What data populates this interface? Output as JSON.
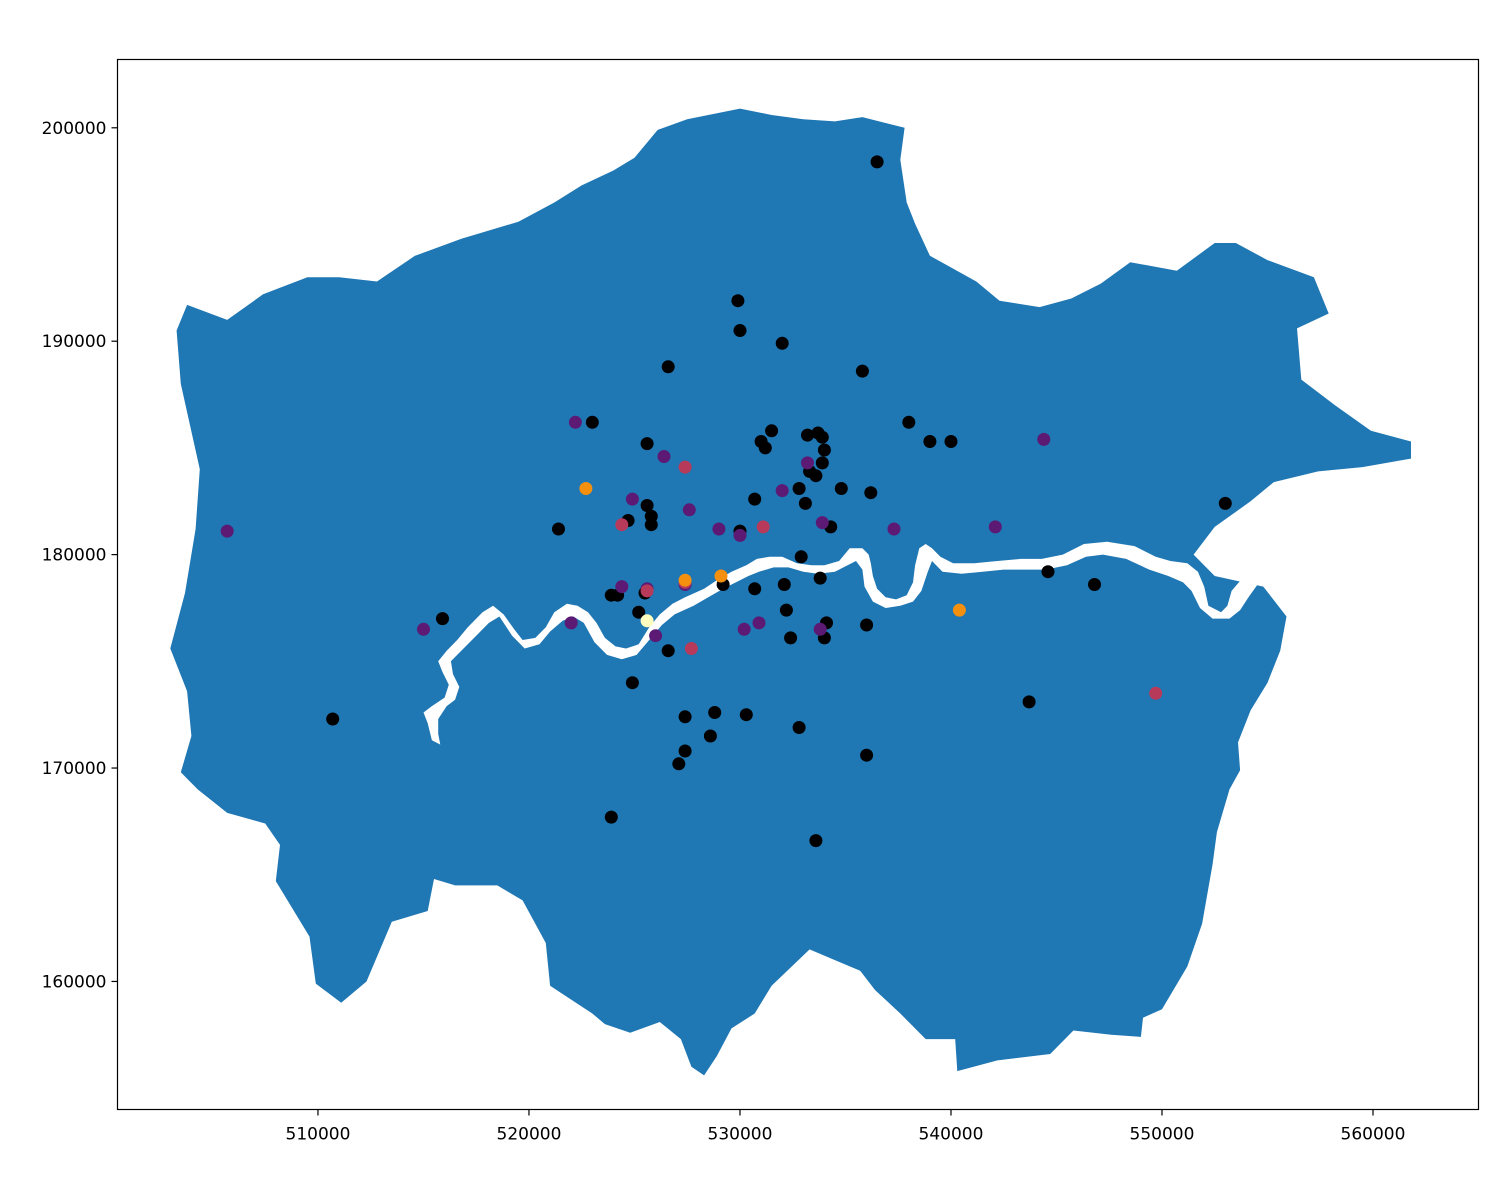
{
  "chart_data": {
    "type": "scatter",
    "title": "",
    "xlabel": "",
    "ylabel": "",
    "xlim": [
      500500,
      565000
    ],
    "ylim": [
      154000,
      203200
    ],
    "grid": false,
    "legend": "none",
    "x_ticks": [
      510000,
      520000,
      530000,
      540000,
      550000,
      560000
    ],
    "y_ticks": [
      160000,
      170000,
      180000,
      190000,
      200000
    ],
    "x_tick_labels": [
      "510000",
      "520000",
      "530000",
      "540000",
      "550000",
      "560000"
    ],
    "y_tick_labels": [
      "160000",
      "170000",
      "180000",
      "190000",
      "200000"
    ],
    "colors": {
      "region_fill": "#1f77b4",
      "river": "#ffffff",
      "level_0": "#000000",
      "level_1": "#5c1a74",
      "level_2": "#b73a5a",
      "level_3": "#f5900f",
      "level_4": "#fcfdbf"
    },
    "region_outline": [
      [
        503000,
        175600
      ],
      [
        503700,
        178200
      ],
      [
        504200,
        181200
      ],
      [
        504400,
        184000
      ],
      [
        503500,
        188000
      ],
      [
        503300,
        190500
      ],
      [
        503800,
        191700
      ],
      [
        505700,
        191000
      ],
      [
        507400,
        192200
      ],
      [
        509500,
        193000
      ],
      [
        511000,
        193000
      ],
      [
        512800,
        192800
      ],
      [
        514600,
        194000
      ],
      [
        516800,
        194800
      ],
      [
        519500,
        195600
      ],
      [
        521200,
        196500
      ],
      [
        522500,
        197300
      ],
      [
        524000,
        198000
      ],
      [
        525000,
        198600
      ],
      [
        526100,
        199900
      ],
      [
        527500,
        200400
      ],
      [
        528500,
        200600
      ],
      [
        530000,
        200900
      ],
      [
        531500,
        200600
      ],
      [
        533000,
        200400
      ],
      [
        534500,
        200300
      ],
      [
        535800,
        200500
      ],
      [
        537800,
        200000
      ],
      [
        537600,
        198500
      ],
      [
        537900,
        196500
      ],
      [
        538300,
        195500
      ],
      [
        539000,
        194000
      ],
      [
        541200,
        192800
      ],
      [
        542300,
        191900
      ],
      [
        544200,
        191600
      ],
      [
        545700,
        192000
      ],
      [
        547100,
        192700
      ],
      [
        548500,
        193700
      ],
      [
        550700,
        193300
      ],
      [
        552500,
        194600
      ],
      [
        553500,
        194600
      ],
      [
        555000,
        193800
      ],
      [
        557200,
        193000
      ],
      [
        557900,
        191300
      ],
      [
        556400,
        190600
      ],
      [
        556600,
        188200
      ],
      [
        558200,
        187000
      ],
      [
        559900,
        185800
      ],
      [
        561800,
        185300
      ],
      [
        561800,
        184500
      ],
      [
        559500,
        184100
      ],
      [
        557400,
        183900
      ],
      [
        555300,
        183400
      ],
      [
        554200,
        182500
      ],
      [
        552500,
        181300
      ],
      [
        551500,
        180000
      ],
      [
        552500,
        179000
      ],
      [
        554800,
        178500
      ],
      [
        555900,
        177100
      ],
      [
        555600,
        175500
      ],
      [
        555000,
        174000
      ],
      [
        554200,
        172700
      ],
      [
        553600,
        171200
      ],
      [
        553700,
        169900
      ],
      [
        553200,
        169000
      ],
      [
        552600,
        167000
      ],
      [
        552400,
        165500
      ],
      [
        551900,
        162700
      ],
      [
        551200,
        160700
      ],
      [
        550000,
        158700
      ],
      [
        549100,
        158300
      ],
      [
        549000,
        157400
      ],
      [
        547600,
        157500
      ],
      [
        545800,
        157700
      ],
      [
        544700,
        156600
      ],
      [
        542200,
        156300
      ],
      [
        540300,
        155800
      ],
      [
        540200,
        157300
      ],
      [
        538800,
        157300
      ],
      [
        537600,
        158500
      ],
      [
        536400,
        159600
      ],
      [
        535700,
        160500
      ],
      [
        534500,
        161000
      ],
      [
        533300,
        161500
      ],
      [
        531500,
        159800
      ],
      [
        530700,
        158500
      ],
      [
        529600,
        157800
      ],
      [
        528900,
        156500
      ],
      [
        528300,
        155600
      ],
      [
        527700,
        156000
      ],
      [
        527200,
        157300
      ],
      [
        526200,
        158100
      ],
      [
        524800,
        157600
      ],
      [
        523600,
        158000
      ],
      [
        523000,
        158500
      ],
      [
        521000,
        159800
      ],
      [
        520800,
        161800
      ],
      [
        519700,
        163800
      ],
      [
        518500,
        164500
      ],
      [
        516500,
        164500
      ],
      [
        515500,
        164800
      ],
      [
        515200,
        163300
      ],
      [
        513500,
        162800
      ],
      [
        512300,
        160000
      ],
      [
        511100,
        159000
      ],
      [
        509900,
        159900
      ],
      [
        509600,
        162100
      ],
      [
        508000,
        164700
      ],
      [
        508200,
        166400
      ],
      [
        507500,
        167400
      ],
      [
        505700,
        167900
      ],
      [
        504300,
        169000
      ],
      [
        503500,
        169800
      ],
      [
        504000,
        171500
      ],
      [
        503800,
        173600
      ],
      [
        503000,
        175600
      ]
    ],
    "river_outline": [
      [
        562000,
        182000
      ],
      [
        560000,
        181700
      ],
      [
        558000,
        181300
      ],
      [
        556600,
        180700
      ],
      [
        555100,
        179800
      ],
      [
        553900,
        179000
      ],
      [
        553300,
        178300
      ],
      [
        553100,
        177600
      ],
      [
        552800,
        177300
      ],
      [
        552200,
        177600
      ],
      [
        552000,
        178500
      ],
      [
        551700,
        179200
      ],
      [
        551200,
        179600
      ],
      [
        550400,
        179700
      ],
      [
        549700,
        179900
      ],
      [
        548700,
        180400
      ],
      [
        547400,
        180600
      ],
      [
        546300,
        180500
      ],
      [
        545300,
        180000
      ],
      [
        544300,
        179800
      ],
      [
        543300,
        179800
      ],
      [
        542200,
        179700
      ],
      [
        541100,
        179600
      ],
      [
        540100,
        179600
      ],
      [
        539500,
        179900
      ],
      [
        539100,
        180300
      ],
      [
        538800,
        180500
      ],
      [
        538500,
        180300
      ],
      [
        538300,
        179500
      ],
      [
        538200,
        178700
      ],
      [
        537900,
        178100
      ],
      [
        537400,
        177900
      ],
      [
        536900,
        178000
      ],
      [
        536500,
        178400
      ],
      [
        536300,
        179000
      ],
      [
        536200,
        179600
      ],
      [
        536100,
        180000
      ],
      [
        535800,
        180300
      ],
      [
        535200,
        180300
      ],
      [
        534700,
        179700
      ],
      [
        534000,
        179500
      ],
      [
        533400,
        179500
      ],
      [
        532700,
        179600
      ],
      [
        532000,
        179900
      ],
      [
        531400,
        179900
      ],
      [
        530800,
        179800
      ],
      [
        530300,
        179500
      ],
      [
        529600,
        179200
      ],
      [
        528900,
        178800
      ],
      [
        528300,
        178400
      ],
      [
        527400,
        178000
      ],
      [
        526800,
        177700
      ],
      [
        526200,
        177200
      ],
      [
        525700,
        176600
      ],
      [
        525200,
        175800
      ],
      [
        524600,
        175600
      ],
      [
        524100,
        175700
      ],
      [
        523600,
        176100
      ],
      [
        523200,
        176800
      ],
      [
        522800,
        177300
      ],
      [
        522300,
        177600
      ],
      [
        521800,
        177700
      ],
      [
        521200,
        177300
      ],
      [
        520800,
        176600
      ],
      [
        520300,
        176100
      ],
      [
        519700,
        176000
      ],
      [
        519300,
        176500
      ],
      [
        518800,
        177200
      ],
      [
        518300,
        177600
      ],
      [
        517800,
        177300
      ],
      [
        517100,
        176600
      ],
      [
        516600,
        176000
      ],
      [
        516100,
        175500
      ],
      [
        515700,
        175000
      ],
      [
        515900,
        174500
      ],
      [
        516200,
        173900
      ],
      [
        516000,
        173300
      ],
      [
        515400,
        172900
      ],
      [
        515000,
        172600
      ],
      [
        515200,
        172100
      ],
      [
        515400,
        171300
      ],
      [
        515800,
        171100
      ],
      [
        515700,
        171600
      ],
      [
        515700,
        172300
      ],
      [
        516100,
        172900
      ],
      [
        516500,
        173200
      ],
      [
        516700,
        173800
      ],
      [
        516400,
        174400
      ],
      [
        516300,
        175000
      ],
      [
        516700,
        175400
      ],
      [
        517400,
        176100
      ],
      [
        518100,
        176800
      ],
      [
        518600,
        177100
      ],
      [
        519200,
        176200
      ],
      [
        519800,
        175600
      ],
      [
        520500,
        175800
      ],
      [
        521000,
        176400
      ],
      [
        521600,
        176900
      ],
      [
        522100,
        177100
      ],
      [
        522600,
        176800
      ],
      [
        523100,
        175900
      ],
      [
        523700,
        175300
      ],
      [
        524400,
        175100
      ],
      [
        525100,
        175300
      ],
      [
        525700,
        176000
      ],
      [
        526300,
        176700
      ],
      [
        526900,
        177200
      ],
      [
        527800,
        177600
      ],
      [
        528500,
        178000
      ],
      [
        529200,
        178400
      ],
      [
        529800,
        178700
      ],
      [
        530400,
        179000
      ],
      [
        530900,
        179200
      ],
      [
        531600,
        179400
      ],
      [
        532300,
        179400
      ],
      [
        533000,
        179200
      ],
      [
        533700,
        179100
      ],
      [
        534500,
        179200
      ],
      [
        535100,
        179500
      ],
      [
        535500,
        179700
      ],
      [
        535800,
        179300
      ],
      [
        535900,
        178500
      ],
      [
        536300,
        177800
      ],
      [
        536900,
        177500
      ],
      [
        537600,
        177600
      ],
      [
        538200,
        177800
      ],
      [
        538600,
        178300
      ],
      [
        538900,
        179200
      ],
      [
        539100,
        179700
      ],
      [
        539600,
        179200
      ],
      [
        540500,
        179100
      ],
      [
        541500,
        179200
      ],
      [
        542500,
        179300
      ],
      [
        543500,
        179300
      ],
      [
        544500,
        179300
      ],
      [
        545500,
        179500
      ],
      [
        546400,
        179900
      ],
      [
        547200,
        180000
      ],
      [
        548300,
        179800
      ],
      [
        549400,
        179300
      ],
      [
        550300,
        179000
      ],
      [
        551000,
        178700
      ],
      [
        551400,
        178300
      ],
      [
        551800,
        177500
      ],
      [
        552400,
        177000
      ],
      [
        553200,
        177000
      ],
      [
        553700,
        177400
      ],
      [
        554100,
        178000
      ],
      [
        554600,
        178700
      ],
      [
        555600,
        179600
      ],
      [
        556800,
        180300
      ],
      [
        558400,
        180800
      ],
      [
        562000,
        181200
      ]
    ],
    "points": [
      [
        536500,
        198400,
        0
      ],
      [
        529900,
        191900,
        0
      ],
      [
        530000,
        190500,
        0
      ],
      [
        532000,
        189900,
        0
      ],
      [
        526600,
        188800,
        0
      ],
      [
        535800,
        188600,
        0
      ],
      [
        523000,
        186200,
        0
      ],
      [
        538000,
        186200,
        0
      ],
      [
        531500,
        185800,
        0
      ],
      [
        533200,
        185600,
        0
      ],
      [
        533700,
        185700,
        0
      ],
      [
        533900,
        185500,
        0
      ],
      [
        531000,
        185300,
        0
      ],
      [
        539000,
        185300,
        0
      ],
      [
        540000,
        185300,
        0
      ],
      [
        531200,
        185000,
        0
      ],
      [
        525600,
        185200,
        0
      ],
      [
        534000,
        184900,
        0
      ],
      [
        533900,
        184300,
        0
      ],
      [
        533300,
        183900,
        0
      ],
      [
        533600,
        183700,
        0
      ],
      [
        532800,
        183100,
        0
      ],
      [
        534800,
        183100,
        0
      ],
      [
        536200,
        182900,
        0
      ],
      [
        530700,
        182600,
        0
      ],
      [
        533100,
        182400,
        0
      ],
      [
        525600,
        182300,
        0
      ],
      [
        525800,
        181800,
        0
      ],
      [
        524700,
        181600,
        0
      ],
      [
        525800,
        181400,
        0
      ],
      [
        521400,
        181200,
        0
      ],
      [
        534300,
        181300,
        0
      ],
      [
        530000,
        181100,
        0
      ],
      [
        553000,
        182400,
        0
      ],
      [
        532900,
        179900,
        0
      ],
      [
        544600,
        179200,
        0
      ],
      [
        546800,
        178600,
        0
      ],
      [
        533800,
        178900,
        0
      ],
      [
        532100,
        178600,
        0
      ],
      [
        529200,
        178600,
        0
      ],
      [
        530700,
        178400,
        0
      ],
      [
        525500,
        178200,
        0
      ],
      [
        523900,
        178100,
        0
      ],
      [
        524200,
        178100,
        0
      ],
      [
        525200,
        177300,
        0
      ],
      [
        532200,
        177400,
        0
      ],
      [
        534100,
        176800,
        0
      ],
      [
        536000,
        176700,
        0
      ],
      [
        532400,
        176100,
        0
      ],
      [
        534000,
        176100,
        0
      ],
      [
        526600,
        175500,
        0
      ],
      [
        524900,
        174000,
        0
      ],
      [
        510700,
        172300,
        0
      ],
      [
        543700,
        173100,
        0
      ],
      [
        528800,
        172600,
        0
      ],
      [
        527400,
        172400,
        0
      ],
      [
        530300,
        172500,
        0
      ],
      [
        532800,
        171900,
        0
      ],
      [
        528600,
        171500,
        0
      ],
      [
        527400,
        170800,
        0
      ],
      [
        536000,
        170600,
        0
      ],
      [
        527100,
        170200,
        0
      ],
      [
        523900,
        167700,
        0
      ],
      [
        533600,
        166600,
        0
      ],
      [
        515900,
        177000,
        0
      ],
      [
        505700,
        181100,
        1
      ],
      [
        522200,
        186200,
        1
      ],
      [
        526400,
        184600,
        1
      ],
      [
        533200,
        184300,
        1
      ],
      [
        544400,
        185400,
        1
      ],
      [
        532000,
        183000,
        1
      ],
      [
        524900,
        182600,
        1
      ],
      [
        527600,
        182100,
        1
      ],
      [
        533900,
        181500,
        1
      ],
      [
        529000,
        181200,
        1
      ],
      [
        537300,
        181200,
        1
      ],
      [
        542100,
        181300,
        1
      ],
      [
        530000,
        180900,
        1
      ],
      [
        524400,
        178500,
        1
      ],
      [
        525600,
        178400,
        1
      ],
      [
        527400,
        178600,
        1
      ],
      [
        522000,
        176800,
        1
      ],
      [
        515000,
        176500,
        1
      ],
      [
        526000,
        176200,
        1
      ],
      [
        530200,
        176500,
        1
      ],
      [
        530900,
        176800,
        1
      ],
      [
        533800,
        176500,
        1
      ],
      [
        527400,
        184100,
        2
      ],
      [
        524400,
        181400,
        2
      ],
      [
        531100,
        181300,
        2
      ],
      [
        527400,
        178700,
        2
      ],
      [
        527700,
        175600,
        2
      ],
      [
        549700,
        173500,
        2
      ],
      [
        525600,
        178300,
        2
      ],
      [
        522700,
        183100,
        3
      ],
      [
        527400,
        178800,
        3
      ],
      [
        529100,
        179000,
        3
      ],
      [
        540400,
        177400,
        3
      ],
      [
        525600,
        176900,
        4
      ]
    ]
  }
}
